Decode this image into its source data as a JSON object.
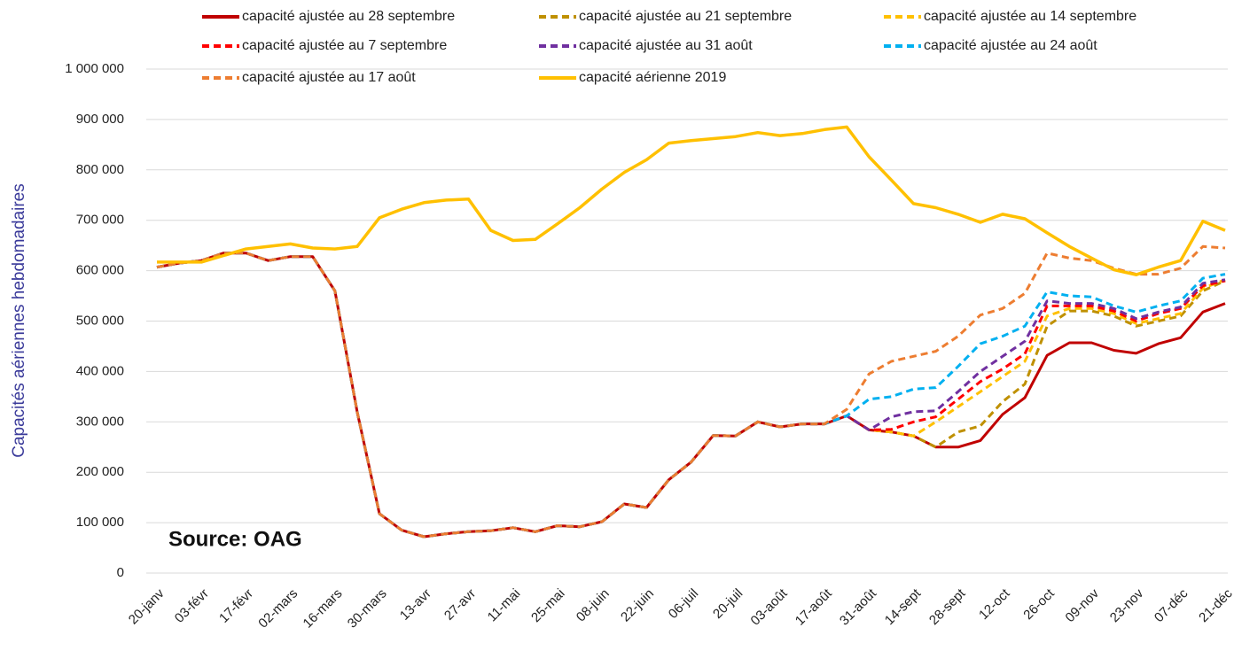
{
  "chart_data": {
    "type": "line",
    "y_label": "Capacités aériennes hebdomadaires",
    "annotation": "Source: OAG",
    "categories": [
      "20-janv",
      null,
      "03-févr",
      null,
      "17-févr",
      null,
      "02-mars",
      null,
      "16-mars",
      null,
      "30-mars",
      null,
      "13-avr",
      null,
      "27-avr",
      null,
      "11-mai",
      null,
      "25-mai",
      null,
      "08-juin",
      null,
      "22-juin",
      null,
      "06-juil",
      null,
      "20-juil",
      null,
      "03-août",
      null,
      "17-août",
      null,
      "31-août",
      null,
      "14-sept",
      null,
      "28-sept",
      null,
      "12-oct",
      null,
      "26-oct",
      null,
      "09-nov",
      null,
      "23-nov",
      null,
      "07-déc",
      null,
      "21-déc"
    ],
    "ylim": [
      0,
      1000000
    ],
    "yticks": [
      0,
      {
        "value": 100000,
        "label": "100 000"
      },
      {
        "value": 200000,
        "label": "200 000"
      },
      {
        "value": 300000,
        "label": "300 000"
      },
      {
        "value": 400000,
        "label": "400 000"
      },
      {
        "value": 500000,
        "label": "500 000"
      },
      {
        "value": 600000,
        "label": "600 000"
      },
      {
        "value": 700000,
        "label": "700 000"
      },
      {
        "value": 800000,
        "label": "800 000"
      },
      {
        "value": 900000,
        "label": "900 000"
      },
      {
        "value": 1000000,
        "label": "1 000 000"
      }
    ],
    "grid": true,
    "legend": "top",
    "series": [
      {
        "name": "capacité ajustée au 28 septembre",
        "color": "#c00000",
        "style": "solid",
        "values": [
          607000,
          615000,
          620000,
          635000,
          635000,
          620000,
          628000,
          628000,
          560000,
          320000,
          118000,
          85000,
          72000,
          78000,
          82000,
          84000,
          90000,
          82000,
          94000,
          92000,
          102000,
          137000,
          130000,
          185000,
          220000,
          273000,
          272000,
          300000,
          290000,
          296000,
          296000,
          312000,
          284000,
          280000,
          272000,
          250000,
          250000,
          263000,
          315000,
          348000,
          432000,
          457000,
          457000,
          442000,
          436000,
          455000,
          467000,
          518000,
          535000
        ]
      },
      {
        "name": "capacité ajustée au 21 septembre",
        "color": "#bf9000",
        "style": "dashed",
        "values": [
          607000,
          615000,
          620000,
          635000,
          635000,
          620000,
          628000,
          628000,
          560000,
          320000,
          118000,
          85000,
          72000,
          78000,
          82000,
          84000,
          90000,
          82000,
          94000,
          92000,
          102000,
          137000,
          130000,
          185000,
          220000,
          273000,
          272000,
          300000,
          290000,
          296000,
          296000,
          312000,
          284000,
          280000,
          272000,
          250000,
          280000,
          292000,
          340000,
          375000,
          490000,
          520000,
          520000,
          510000,
          490000,
          500000,
          510000,
          560000,
          580000
        ]
      },
      {
        "name": "capacité ajustée au 14 septembre",
        "color": "#ffc000",
        "style": "dashed",
        "values": [
          607000,
          615000,
          620000,
          635000,
          635000,
          620000,
          628000,
          628000,
          560000,
          320000,
          118000,
          85000,
          72000,
          78000,
          82000,
          84000,
          90000,
          82000,
          94000,
          92000,
          102000,
          137000,
          130000,
          185000,
          220000,
          273000,
          272000,
          300000,
          290000,
          296000,
          296000,
          312000,
          284000,
          280000,
          272000,
          300000,
          330000,
          360000,
          390000,
          420000,
          510000,
          525000,
          525000,
          515000,
          495000,
          505000,
          515000,
          565000,
          582000
        ]
      },
      {
        "name": "capacité ajustée au 7 septembre",
        "color": "#ff0000",
        "style": "dashed",
        "values": [
          607000,
          615000,
          620000,
          635000,
          635000,
          620000,
          628000,
          628000,
          560000,
          320000,
          118000,
          85000,
          72000,
          78000,
          82000,
          84000,
          90000,
          82000,
          94000,
          92000,
          102000,
          137000,
          130000,
          185000,
          220000,
          273000,
          272000,
          300000,
          290000,
          296000,
          296000,
          312000,
          284000,
          285000,
          300000,
          310000,
          345000,
          380000,
          405000,
          435000,
          530000,
          530000,
          530000,
          520000,
          500000,
          515000,
          525000,
          570000,
          580000
        ]
      },
      {
        "name": "capacité ajustée au 31 août",
        "color": "#7030a0",
        "style": "dashed",
        "values": [
          607000,
          615000,
          620000,
          635000,
          635000,
          620000,
          628000,
          628000,
          560000,
          320000,
          118000,
          85000,
          72000,
          78000,
          82000,
          84000,
          90000,
          82000,
          94000,
          92000,
          102000,
          137000,
          130000,
          185000,
          220000,
          273000,
          272000,
          300000,
          290000,
          296000,
          296000,
          312000,
          284000,
          310000,
          320000,
          322000,
          360000,
          400000,
          430000,
          460000,
          540000,
          535000,
          535000,
          525000,
          505000,
          518000,
          528000,
          575000,
          582000
        ]
      },
      {
        "name": "capacité ajustée au 24 août",
        "color": "#00b0f0",
        "style": "dashed",
        "values": [
          607000,
          615000,
          620000,
          635000,
          635000,
          620000,
          628000,
          628000,
          560000,
          320000,
          118000,
          85000,
          72000,
          78000,
          82000,
          84000,
          90000,
          82000,
          94000,
          92000,
          102000,
          137000,
          130000,
          185000,
          220000,
          273000,
          272000,
          300000,
          290000,
          296000,
          296000,
          312000,
          345000,
          350000,
          365000,
          368000,
          410000,
          455000,
          470000,
          490000,
          558000,
          550000,
          548000,
          530000,
          518000,
          530000,
          540000,
          585000,
          593000
        ]
      },
      {
        "name": "capacité ajustée au 17 août",
        "color": "#ed7d31",
        "style": "dashed",
        "values": [
          607000,
          615000,
          620000,
          635000,
          635000,
          620000,
          628000,
          628000,
          560000,
          320000,
          118000,
          85000,
          72000,
          78000,
          82000,
          84000,
          90000,
          82000,
          94000,
          92000,
          102000,
          137000,
          130000,
          185000,
          220000,
          273000,
          272000,
          300000,
          290000,
          296000,
          296000,
          325000,
          395000,
          420000,
          430000,
          440000,
          470000,
          512000,
          525000,
          555000,
          635000,
          625000,
          620000,
          605000,
          593000,
          593000,
          605000,
          648000,
          645000
        ]
      },
      {
        "name": "capacité aérienne 2019",
        "color": "#ffc000",
        "style": "solid",
        "values": [
          617000,
          617000,
          617000,
          630000,
          643000,
          648000,
          653000,
          645000,
          643000,
          648000,
          705000,
          722000,
          735000,
          740000,
          742000,
          680000,
          660000,
          662000,
          693000,
          725000,
          762000,
          795000,
          820000,
          853000,
          858000,
          862000,
          866000,
          874000,
          868000,
          872000,
          880000,
          885000,
          826000,
          780000,
          733000,
          725000,
          712000,
          696000,
          712000,
          703000,
          675000,
          648000,
          625000,
          602000,
          592000,
          607000,
          620000,
          698000,
          680000
        ]
      }
    ]
  }
}
